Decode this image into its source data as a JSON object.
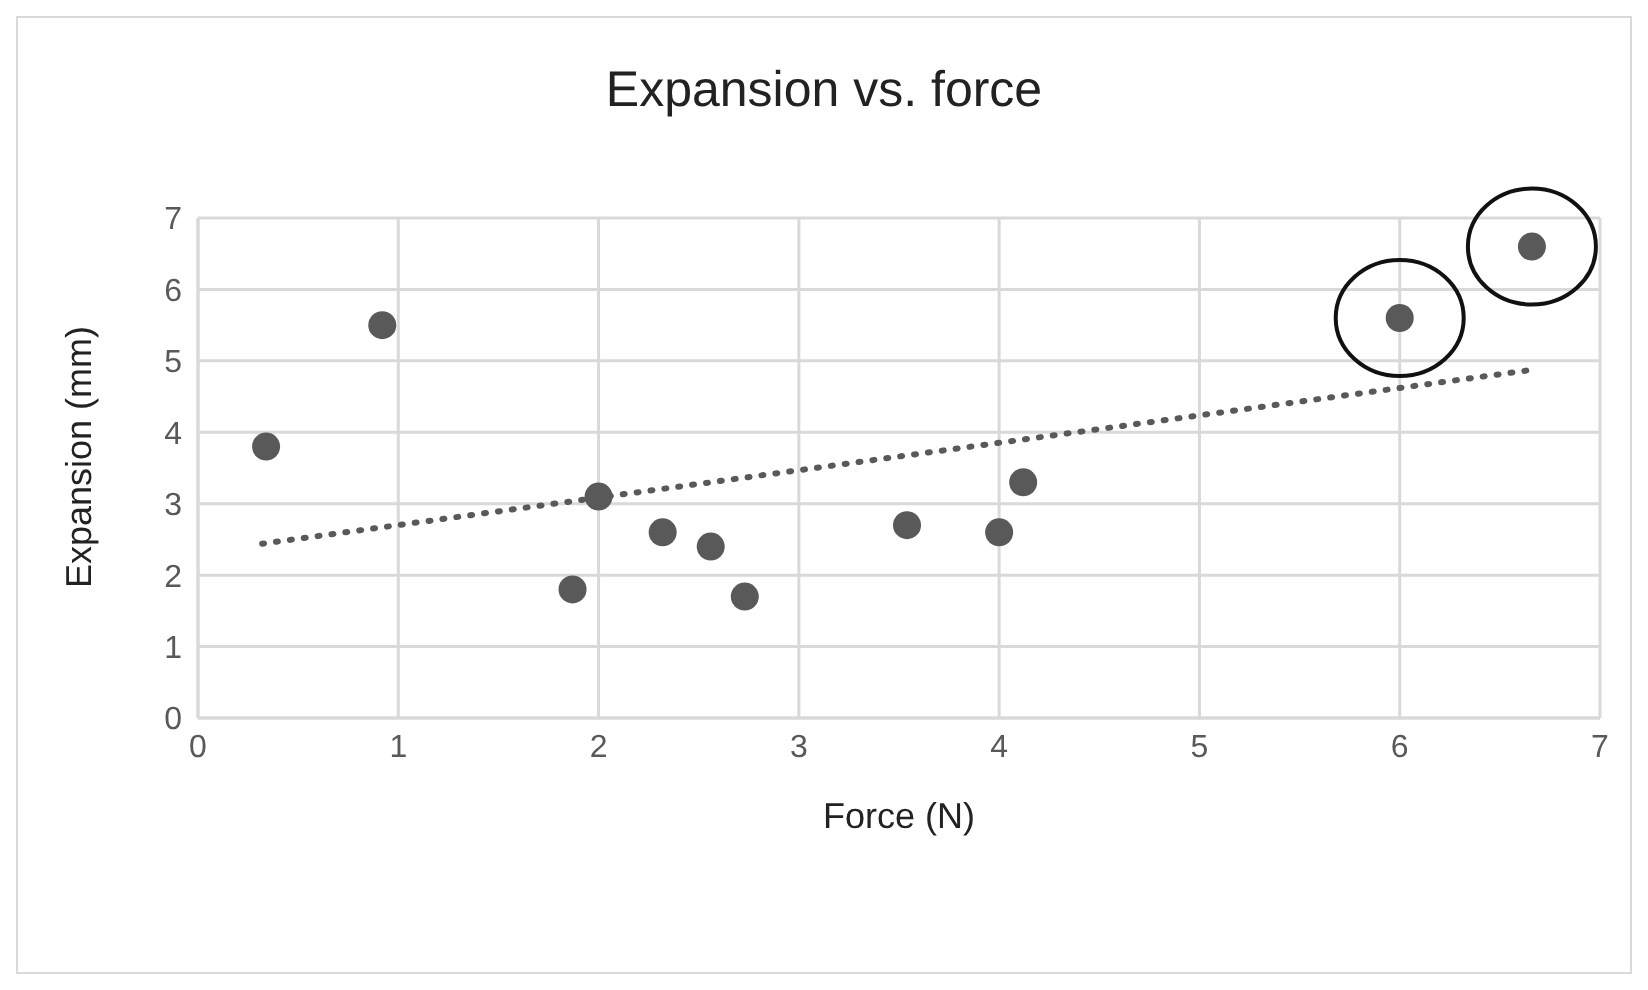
{
  "chart_data": {
    "type": "scatter",
    "title": "Expansion vs. force",
    "xlabel": "Force (N)",
    "ylabel": "Expansion (mm)",
    "xlim": [
      0,
      7
    ],
    "xticks": [
      0,
      1,
      2,
      3,
      4,
      5,
      6,
      7
    ],
    "ylim": [
      0,
      7
    ],
    "yticks": [
      0,
      1,
      2,
      3,
      4,
      5,
      6,
      7
    ],
    "grid": true,
    "legend": false,
    "marker": "circle",
    "series": [
      {
        "color": "#595959",
        "x": [
          0.34,
          0.92,
          1.87,
          2.0,
          2.32,
          2.56,
          2.73,
          3.54,
          4.0,
          4.12,
          6.0,
          6.66
        ],
        "values": [
          3.8,
          5.5,
          1.8,
          3.1,
          2.6,
          2.4,
          1.7,
          2.7,
          2.6,
          3.3,
          5.6,
          6.6
        ]
      },
      {
        "type": "line",
        "color": "#595959",
        "line_style": "dotted",
        "marker": "none",
        "x": [
          0.32,
          6.65
        ],
        "values": [
          2.44,
          4.87
        ]
      }
    ]
  }
}
